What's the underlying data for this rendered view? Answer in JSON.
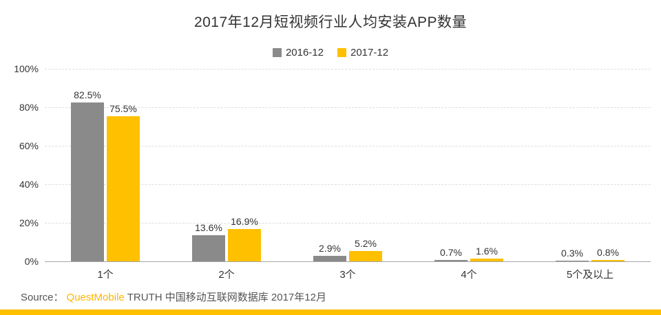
{
  "title": "2017年12月短视频行业人均安装APP数量",
  "source": {
    "prefix": "Source：",
    "brand": "QuestMobile",
    "rest": "TRUTH 中国移动互联网数据库 2017年12月"
  },
  "colors": {
    "series_gray": "#8a8a8a",
    "series_yellow": "#ffc000",
    "brand_text": "#ffb400",
    "accent_strip": "#ffc000",
    "gridline": "#dddddd",
    "axis": "#a6a6a6",
    "text": "#333333"
  },
  "chart_data": {
    "type": "bar",
    "categories": [
      "1个",
      "2个",
      "3个",
      "4个",
      "5个及以上"
    ],
    "series": [
      {
        "name": "2016-12",
        "color": "#8a8a8a",
        "values": [
          82.5,
          13.6,
          2.9,
          0.7,
          0.3
        ]
      },
      {
        "name": "2017-12",
        "color": "#ffc000",
        "values": [
          75.5,
          16.9,
          5.2,
          1.6,
          0.8
        ]
      }
    ],
    "value_suffix": "%",
    "ylim": [
      0,
      100
    ],
    "yticks": [
      0,
      20,
      40,
      60,
      80,
      100
    ],
    "ytick_labels": [
      "0%",
      "20%",
      "40%",
      "60%",
      "80%",
      "100%"
    ],
    "grid": true,
    "legend_position": "top",
    "legend_labels": [
      "2016-12",
      "2017-12"
    ]
  }
}
